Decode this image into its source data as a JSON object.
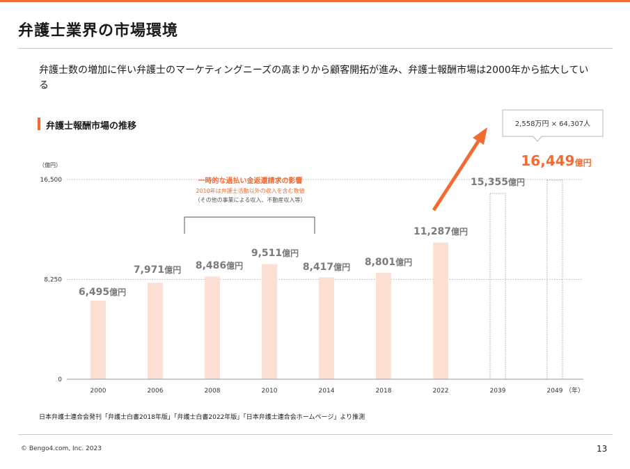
{
  "slide": {
    "title": "弁護士業界の市場環境",
    "lead": "弁護士数の増加に伴い弁護士のマーケティングニーズの高まりから顧客開拓が進み、弁護士報酬市場は2000年から拡大している",
    "section_title": "弁護士報酬市場の推移",
    "source": "日本弁護士連合会発刊「弁護士白書2018年版」「弁護士白書2022年版」「日本弁護士連合会ホームページ」より推測",
    "copyright": "© Bengo4.com, Inc. 2023",
    "page_number": "13"
  },
  "colors": {
    "accent": "#f26b32",
    "bar_fill": "#fde0d3",
    "value_text": "#7a7a7a",
    "forecast_border": "#aaaaaa"
  },
  "chart_data": {
    "type": "bar",
    "title": "弁護士報酬市場の推移",
    "y_unit_label": "（億円）",
    "x_unit_label": "（年）",
    "ylim": [
      0,
      16500
    ],
    "y_ticks": [
      0,
      8250,
      16500
    ],
    "y_tick_labels": [
      "0",
      "8,250",
      "16,500"
    ],
    "grid": "dotted at 8,250 and 16,500",
    "categories": [
      "2000",
      "2006",
      "2008",
      "2010",
      "2014",
      "2018",
      "2022",
      "2039",
      "2049"
    ],
    "values": [
      6495,
      7971,
      8486,
      9511,
      8417,
      8801,
      11287,
      15355,
      16449
    ],
    "value_numbers": [
      "6,495",
      "7,971",
      "8,486",
      "9,511",
      "8,417",
      "8,801",
      "11,287",
      "15,355",
      "16,449"
    ],
    "value_unit": "億円",
    "forecast": [
      false,
      false,
      false,
      false,
      false,
      false,
      false,
      true,
      true
    ],
    "highlight": [
      false,
      false,
      false,
      false,
      false,
      false,
      false,
      false,
      true
    ],
    "annotation": {
      "heading": "一時的な過払い金返還請求の影響",
      "line1": "2010年は弁護士活動以外の収入を含む数値",
      "line2": "（その他の事業による収入、不動産収入等）",
      "spans": [
        "2008",
        "2014"
      ]
    },
    "callout": {
      "text": "2,558万円 × 64,307人",
      "target": "2049"
    }
  }
}
